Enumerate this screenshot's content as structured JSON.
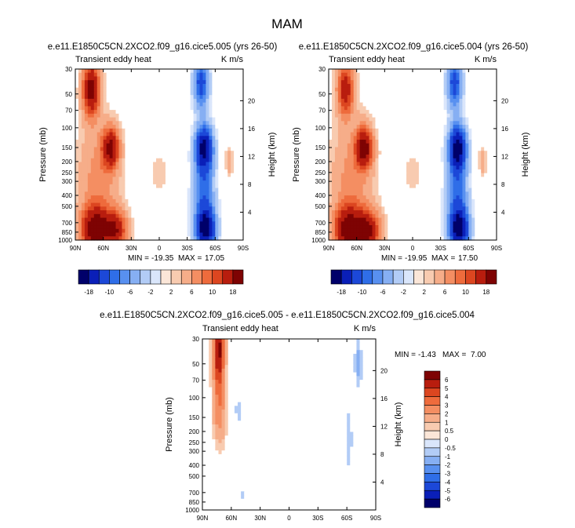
{
  "figure": {
    "title": "MAM",
    "colors": {
      "ramp": [
        "#00006a",
        "#0a1fb8",
        "#1c48d8",
        "#2f6ee8",
        "#5890f0",
        "#86aff3",
        "#b2ccf6",
        "#dae6fb",
        "#fbe6d8",
        "#f8cbb0",
        "#f6ad89",
        "#f48e62",
        "#ee6b3c",
        "#dc4620",
        "#b81d0e",
        "#7e0303"
      ],
      "frame": "#000000"
    }
  },
  "chart_data": [
    {
      "type": "heatmap",
      "title": "e.e11.E1850C5CN.2XCO2.f09_g16.cice5.005 (yrs 26-50)",
      "variable": "Transient eddy heat",
      "units": "K m/s",
      "xlabel": "",
      "ylabel": "Pressure (mb)",
      "y2label": "Height (km)",
      "x_ticks": [
        "90N",
        "60N",
        "30N",
        "0",
        "30S",
        "60S",
        "90S"
      ],
      "y_ticks": [
        "30",
        "50",
        "70",
        "100",
        "150",
        "200",
        "250",
        "300",
        "400",
        "500",
        "700",
        "850",
        "1000"
      ],
      "y2_ticks": [
        "20",
        "16",
        "12",
        "8",
        "4"
      ],
      "xlim": [
        90,
        -90
      ],
      "ylim": [
        1000,
        30
      ],
      "stats": {
        "min_label": "MIN =",
        "min": "-19.35",
        "max_label": "MAX =",
        "max": "17.05"
      },
      "features": [
        {
          "lat": 73,
          "p": 45,
          "value": 16,
          "width": 9,
          "depth": 0.55
        },
        {
          "lat": 70,
          "p": 800,
          "value": 15,
          "width": 14,
          "depth": 0.45
        },
        {
          "lat": 48,
          "p": 820,
          "value": 13,
          "width": 13,
          "depth": 0.4
        },
        {
          "lat": 52,
          "p": 150,
          "value": 14,
          "width": 9,
          "depth": 0.4
        },
        {
          "lat": 65,
          "p": 300,
          "value": 5,
          "width": 22,
          "depth": 1.2
        },
        {
          "lat": -48,
          "p": 150,
          "value": -18,
          "width": 9,
          "depth": 0.45
        },
        {
          "lat": -50,
          "p": 800,
          "value": -18,
          "width": 10,
          "depth": 0.4
        },
        {
          "lat": -45,
          "p": 40,
          "value": -12,
          "width": 8,
          "depth": 0.5
        },
        {
          "lat": -48,
          "p": 400,
          "value": -9,
          "width": 11,
          "depth": 0.9
        },
        {
          "lat": -75,
          "p": 200,
          "value": 4,
          "width": 4,
          "depth": 0.25
        },
        {
          "lat": 0,
          "p": 250,
          "value": 2,
          "width": 8,
          "depth": 0.4
        }
      ]
    },
    {
      "type": "heatmap",
      "title": "e.e11.E1850C5CN.2XCO2.f09_g16.cice5.004 (yrs 26-50)",
      "variable": "Transient eddy heat",
      "units": "K m/s",
      "xlabel": "",
      "ylabel": "Pressure (mb)",
      "y2label": "Height (km)",
      "x_ticks": [
        "90N",
        "60N",
        "30N",
        "0",
        "30S",
        "60S",
        "90S"
      ],
      "y_ticks": [
        "30",
        "50",
        "70",
        "100",
        "150",
        "200",
        "250",
        "300",
        "400",
        "500",
        "700",
        "850",
        "1000"
      ],
      "y2_ticks": [
        "20",
        "16",
        "12",
        "8",
        "4"
      ],
      "xlim": [
        90,
        -90
      ],
      "ylim": [
        1000,
        30
      ],
      "stats": {
        "min_label": "MIN =",
        "min": "-19.95",
        "max_label": "MAX =",
        "max": "17.50"
      },
      "features": [
        {
          "lat": 72,
          "p": 45,
          "value": 12,
          "width": 9,
          "depth": 0.55
        },
        {
          "lat": 70,
          "p": 800,
          "value": 15,
          "width": 14,
          "depth": 0.45
        },
        {
          "lat": 48,
          "p": 820,
          "value": 14,
          "width": 13,
          "depth": 0.4
        },
        {
          "lat": 52,
          "p": 150,
          "value": 15,
          "width": 9,
          "depth": 0.4
        },
        {
          "lat": 65,
          "p": 300,
          "value": 5,
          "width": 22,
          "depth": 1.2
        },
        {
          "lat": -48,
          "p": 150,
          "value": -19,
          "width": 9,
          "depth": 0.45
        },
        {
          "lat": -50,
          "p": 800,
          "value": -18,
          "width": 10,
          "depth": 0.4
        },
        {
          "lat": -45,
          "p": 40,
          "value": -12,
          "width": 8,
          "depth": 0.5
        },
        {
          "lat": -48,
          "p": 400,
          "value": -9,
          "width": 11,
          "depth": 0.9
        },
        {
          "lat": -75,
          "p": 200,
          "value": 4,
          "width": 4,
          "depth": 0.25
        },
        {
          "lat": 0,
          "p": 250,
          "value": 2,
          "width": 8,
          "depth": 0.4
        }
      ]
    },
    {
      "type": "heatmap",
      "title": "e.e11.E1850C5CN.2XCO2.f09_g16.cice5.005 - e.e11.E1850C5CN.2XCO2.f09_g16.cice5.004",
      "variable": "Transient eddy heat",
      "units": "K m/s",
      "xlabel": "",
      "ylabel": "Pressure (mb)",
      "y2label": "Height (km)",
      "x_ticks": [
        "90N",
        "60N",
        "30N",
        "0",
        "30S",
        "60S",
        "90S"
      ],
      "y_ticks": [
        "30",
        "50",
        "70",
        "100",
        "150",
        "200",
        "250",
        "300",
        "400",
        "500",
        "700",
        "850",
        "1000"
      ],
      "y2_ticks": [
        "20",
        "16",
        "12",
        "8",
        "4"
      ],
      "xlim": [
        90,
        -90
      ],
      "ylim": [
        1000,
        30
      ],
      "stats": {
        "min_label": "MIN =",
        "min": "-1.43",
        "max_label": "MAX =",
        "max": "7.00"
      },
      "features": [
        {
          "lat": 73,
          "p": 38,
          "value": 6.5,
          "width": 6,
          "depth": 0.9
        },
        {
          "lat": 72,
          "p": 150,
          "value": 2.0,
          "width": 7,
          "depth": 0.6
        },
        {
          "lat": 70,
          "p": 700,
          "value": -0.5,
          "width": 8,
          "depth": 0.3
        },
        {
          "lat": 48,
          "p": 750,
          "value": -0.6,
          "width": 6,
          "depth": 0.25
        },
        {
          "lat": 52,
          "p": 130,
          "value": -0.7,
          "width": 6,
          "depth": 0.35
        },
        {
          "lat": 10,
          "p": 500,
          "value": 0.3,
          "width": 25,
          "depth": 1.5
        },
        {
          "lat": -72,
          "p": 50,
          "value": -1.3,
          "width": 4,
          "depth": 0.5
        },
        {
          "lat": -62,
          "p": 250,
          "value": -0.8,
          "width": 5,
          "depth": 0.9
        },
        {
          "lat": -45,
          "p": 400,
          "value": 0.4,
          "width": 15,
          "depth": 0.8
        },
        {
          "lat": 30,
          "p": 100,
          "value": -0.3,
          "width": 10,
          "depth": 0.6
        }
      ]
    }
  ],
  "colorbars": {
    "shared": {
      "orientation": "horizontal",
      "labels": [
        "-18",
        "-10",
        "-6",
        "-2",
        "2",
        "6",
        "10",
        "18"
      ],
      "levels": [
        -18,
        -14,
        -10,
        -8,
        -6,
        -4,
        -2,
        -1,
        1,
        2,
        4,
        6,
        8,
        10,
        14,
        18
      ]
    },
    "diff": {
      "orientation": "vertical",
      "labels": [
        "6",
        "5",
        "4",
        "3",
        "2",
        "1",
        "0.5",
        "0",
        "-0.5",
        "-1",
        "-2",
        "-3",
        "-4",
        "-5",
        "-6"
      ],
      "levels": [
        -6,
        -5,
        -4,
        -3,
        -2,
        -1,
        -0.5,
        0,
        0.5,
        1,
        2,
        3,
        4,
        5,
        6
      ]
    }
  }
}
